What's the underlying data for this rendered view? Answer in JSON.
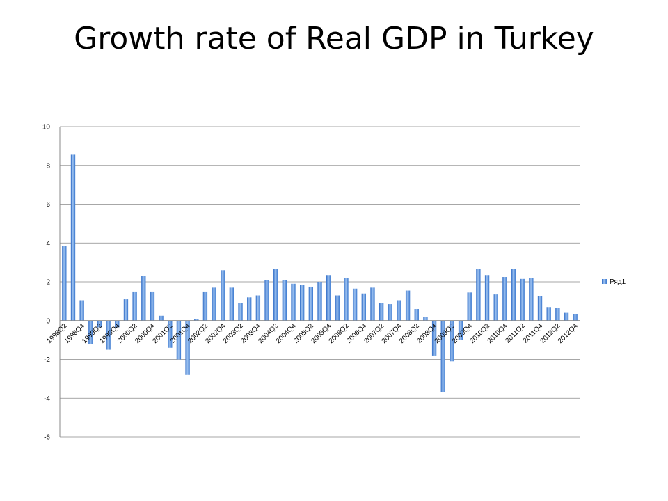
{
  "slide": {
    "title": "Growth rate of Real GDP in Turkey"
  },
  "chart_data": {
    "type": "bar",
    "title": "",
    "xlabel": "",
    "ylabel": "",
    "ylim": [
      -6,
      10
    ],
    "yticks": [
      -6,
      -4,
      -2,
      0,
      2,
      4,
      6,
      8,
      10
    ],
    "grid": true,
    "legend_position": "right",
    "bar_color": "#4a86d4",
    "categories": [
      "1998Q2",
      "1998Q3",
      "1998Q4",
      "1999Q1",
      "1999Q2",
      "1999Q3",
      "1999Q4",
      "2000Q1",
      "2000Q2",
      "2000Q3",
      "2000Q4",
      "2001Q1",
      "2001Q2",
      "2001Q3",
      "2001Q4",
      "2002Q1",
      "2002Q2",
      "2002Q3",
      "2002Q4",
      "2003Q1",
      "2003Q2",
      "2003Q3",
      "2003Q4",
      "2004Q1",
      "2004Q2",
      "2004Q3",
      "2004Q4",
      "2005Q1",
      "2005Q2",
      "2005Q3",
      "2005Q4",
      "2006Q1",
      "2006Q2",
      "2006Q3",
      "2006Q4",
      "2007Q1",
      "2007Q2",
      "2007Q3",
      "2007Q4",
      "2008Q1",
      "2008Q2",
      "2008Q3",
      "2008Q4",
      "2009Q1",
      "2009Q2",
      "2009Q3",
      "2009Q4",
      "2010Q1",
      "2010Q2",
      "2010Q3",
      "2010Q4",
      "2011Q1",
      "2011Q2",
      "2011Q3",
      "2011Q4",
      "2012Q1",
      "2012Q2",
      "2012Q3",
      "2012Q4"
    ],
    "labeled_categories": [
      "1998Q2",
      "1998Q4",
      "1999Q2",
      "1999Q4",
      "2000Q2",
      "2000Q4",
      "2001Q2",
      "2001Q4",
      "2002Q2",
      "2002Q4",
      "2003Q2",
      "2003Q4",
      "2004Q2",
      "2004Q4",
      "2005Q2",
      "2005Q4",
      "2006Q2",
      "2006Q4",
      "2007Q2",
      "2007Q4",
      "2008Q2",
      "2008Q4",
      "2009Q2",
      "2009Q4",
      "2010Q2",
      "2010Q4",
      "2011Q2",
      "2011Q4",
      "2012Q2",
      "2012Q4"
    ],
    "series": [
      {
        "name": "Ряд1",
        "values": [
          3.85,
          8.55,
          1.05,
          -1.2,
          -0.35,
          -1.5,
          -0.35,
          1.1,
          1.5,
          2.3,
          1.5,
          0.25,
          -1.4,
          -2.0,
          -2.8,
          0.08,
          1.5,
          1.7,
          2.6,
          1.7,
          0.9,
          1.2,
          1.3,
          2.1,
          2.65,
          2.1,
          1.9,
          1.85,
          1.75,
          2.0,
          2.35,
          1.3,
          2.2,
          1.65,
          1.4,
          1.7,
          0.9,
          0.85,
          1.05,
          1.55,
          0.6,
          0.2,
          -1.8,
          -3.7,
          -2.1,
          -1.0,
          1.45,
          2.65,
          2.35,
          1.35,
          2.25,
          2.65,
          2.15,
          2.2,
          1.25,
          0.7,
          0.65,
          0.4,
          0.35
        ]
      }
    ]
  }
}
